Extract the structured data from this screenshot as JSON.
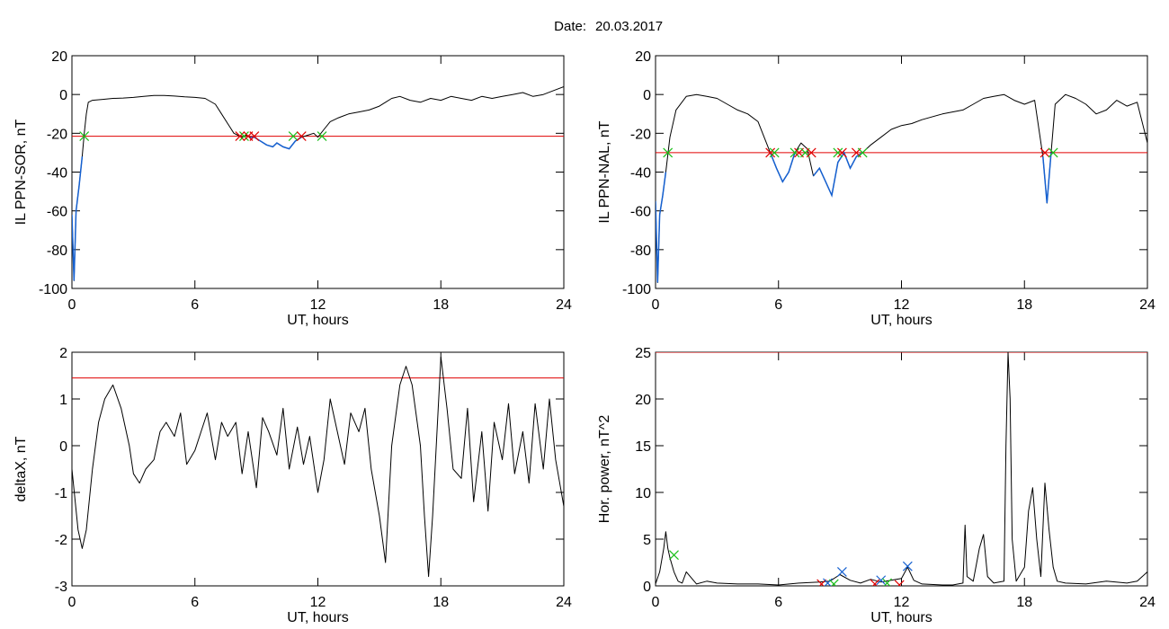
{
  "header": {
    "date_label": "Date:",
    "date_value": "20.03.2017"
  },
  "colors": {
    "axes": "#000000",
    "trace": "#000000",
    "threshold": "#e00000",
    "highlight": "#1560d0",
    "marker_red": "#e00000",
    "marker_green": "#19c019",
    "marker_blue": "#1560d0"
  },
  "chart_data": [
    {
      "type": "line",
      "xlabel": "UT, hours",
      "ylabel": "IL PPN-SOR, nT",
      "xlim": [
        0,
        24
      ],
      "ylim": [
        -100,
        20
      ],
      "xticks": [
        0,
        6,
        12,
        18,
        24
      ],
      "yticks": [
        -100,
        -80,
        -60,
        -40,
        -20,
        0,
        20
      ],
      "threshold": -21.5,
      "series": [
        {
          "x": [
            0,
            0.1,
            0.2,
            0.35,
            0.5,
            0.6,
            0.7,
            0.8,
            1,
            1.5,
            2,
            2.5,
            3,
            3.5,
            4,
            4.5,
            5,
            5.5,
            6,
            6.5,
            7,
            7.3,
            7.6,
            7.9,
            8.1,
            8.3,
            8.5,
            8.7,
            8.9,
            9.2,
            9.5,
            9.8,
            10,
            10.3,
            10.6,
            10.9,
            11.2,
            11.5,
            11.8,
            12,
            12.3,
            12.6,
            13,
            13.5,
            14,
            14.5,
            15,
            15.3,
            15.6,
            16,
            16.5,
            17,
            17.5,
            18,
            18.5,
            19,
            19.5,
            20,
            20.5,
            21,
            21.5,
            22,
            22.5,
            23,
            23.5,
            24
          ],
          "y": [
            -62,
            -96,
            -60,
            -47,
            -32,
            -20,
            -10,
            -4,
            -3,
            -2.5,
            -2,
            -1.8,
            -1.5,
            -1,
            -0.5,
            -0.5,
            -0.8,
            -1.2,
            -1.5,
            -2,
            -5,
            -10,
            -15,
            -20,
            -21,
            -22,
            -21,
            -22,
            -22,
            -24,
            -26,
            -27,
            -25,
            -27,
            -28,
            -24,
            -22,
            -21,
            -20,
            -22,
            -18,
            -14,
            -12,
            -10,
            -9,
            -8,
            -6,
            -4,
            -2,
            -1,
            -3,
            -4,
            -2,
            -3,
            -1,
            -2,
            -3,
            -1,
            -2,
            -1,
            0,
            1,
            -1,
            0,
            2,
            4
          ]
        }
      ],
      "markers": [
        {
          "x": 0.6,
          "y": -21.5,
          "symbol": "x",
          "color": "green"
        },
        {
          "x": 8.2,
          "y": -21.5,
          "symbol": "x",
          "color": "red"
        },
        {
          "x": 8.4,
          "y": -21.5,
          "symbol": "x",
          "color": "green"
        },
        {
          "x": 8.6,
          "y": -21.5,
          "symbol": "x",
          "color": "red"
        },
        {
          "x": 8.9,
          "y": -21.5,
          "symbol": "x",
          "color": "red"
        },
        {
          "x": 10.8,
          "y": -21.5,
          "symbol": "x",
          "color": "green"
        },
        {
          "x": 11.2,
          "y": -21.5,
          "symbol": "x",
          "color": "red"
        },
        {
          "x": 12.2,
          "y": -21.5,
          "symbol": "x",
          "color": "green"
        }
      ],
      "highlight_threshold_below": true
    },
    {
      "type": "line",
      "xlabel": "UT, hours",
      "ylabel": "IL PPN-NAL, nT",
      "xlim": [
        0,
        24
      ],
      "ylim": [
        -100,
        20
      ],
      "xticks": [
        0,
        6,
        12,
        18,
        24
      ],
      "yticks": [
        -100,
        -80,
        -60,
        -40,
        -20,
        0,
        20
      ],
      "threshold": -30,
      "series": [
        {
          "x": [
            0,
            0.1,
            0.2,
            0.35,
            0.5,
            0.7,
            1,
            1.5,
            2,
            2.5,
            3,
            3.5,
            4,
            4.5,
            5,
            5.3,
            5.6,
            5.9,
            6.2,
            6.5,
            6.8,
            7.1,
            7.4,
            7.7,
            8,
            8.3,
            8.6,
            8.9,
            9.2,
            9.5,
            9.8,
            10.1,
            10.5,
            11,
            11.5,
            12,
            12.5,
            13,
            14,
            15,
            15.5,
            16,
            16.5,
            17,
            17.5,
            18,
            18.5,
            18.9,
            19.1,
            19.3,
            19.5,
            20,
            20.5,
            21,
            21.5,
            22,
            22.5,
            23,
            23.5,
            24
          ],
          "y": [
            -55,
            -97,
            -62,
            -52,
            -40,
            -22,
            -8,
            -1,
            0,
            -1,
            -2,
            -5,
            -8,
            -10,
            -14,
            -22,
            -30,
            -38,
            -45,
            -40,
            -30,
            -25,
            -28,
            -42,
            -38,
            -45,
            -52,
            -35,
            -30,
            -38,
            -32,
            -30,
            -26,
            -22,
            -18,
            -16,
            -15,
            -13,
            -10,
            -8,
            -5,
            -2,
            -1,
            0,
            -3,
            -5,
            -3,
            -32,
            -56,
            -30,
            -5,
            0,
            -2,
            -5,
            -10,
            -8,
            -3,
            -6,
            -4,
            -25
          ]
        }
      ],
      "markers": [
        {
          "x": 0.6,
          "y": -30,
          "symbol": "x",
          "color": "green"
        },
        {
          "x": 5.6,
          "y": -30,
          "symbol": "x",
          "color": "red"
        },
        {
          "x": 5.8,
          "y": -30,
          "symbol": "x",
          "color": "green"
        },
        {
          "x": 6.8,
          "y": -30,
          "symbol": "x",
          "color": "green"
        },
        {
          "x": 7.0,
          "y": -30,
          "symbol": "x",
          "color": "red"
        },
        {
          "x": 7.3,
          "y": -30,
          "symbol": "x",
          "color": "green"
        },
        {
          "x": 7.6,
          "y": -30,
          "symbol": "x",
          "color": "red"
        },
        {
          "x": 8.9,
          "y": -30,
          "symbol": "x",
          "color": "green"
        },
        {
          "x": 9.1,
          "y": -30,
          "symbol": "x",
          "color": "red"
        },
        {
          "x": 9.8,
          "y": -30,
          "symbol": "x",
          "color": "red"
        },
        {
          "x": 10.1,
          "y": -30,
          "symbol": "x",
          "color": "green"
        },
        {
          "x": 19.0,
          "y": -30,
          "symbol": "x",
          "color": "red"
        },
        {
          "x": 19.4,
          "y": -30,
          "symbol": "x",
          "color": "green"
        }
      ],
      "highlight_threshold_below": true
    },
    {
      "type": "line",
      "xlabel": "UT, hours",
      "ylabel": "deltaX, nT",
      "xlim": [
        0,
        24
      ],
      "ylim": [
        -3,
        2
      ],
      "xticks": [
        0,
        6,
        12,
        18,
        24
      ],
      "yticks": [
        -3,
        -2,
        -1,
        0,
        1,
        2
      ],
      "threshold": 1.45,
      "series": [
        {
          "x": [
            0,
            0.3,
            0.5,
            0.7,
            1,
            1.3,
            1.6,
            2,
            2.4,
            2.8,
            3,
            3.3,
            3.6,
            4,
            4.3,
            4.6,
            5,
            5.3,
            5.6,
            6,
            6.3,
            6.6,
            7,
            7.3,
            7.6,
            8,
            8.3,
            8.6,
            9,
            9.3,
            9.6,
            10,
            10.3,
            10.6,
            11,
            11.3,
            11.6,
            12,
            12.3,
            12.6,
            13,
            13.3,
            13.6,
            14,
            14.3,
            14.6,
            15,
            15.3,
            15.6,
            16,
            16.3,
            16.6,
            17,
            17.2,
            17.4,
            17.6,
            18,
            18.3,
            18.6,
            19,
            19.3,
            19.6,
            20,
            20.3,
            20.6,
            21,
            21.3,
            21.6,
            22,
            22.3,
            22.6,
            23,
            23.3,
            23.6,
            24
          ],
          "y": [
            -0.5,
            -1.8,
            -2.2,
            -1.8,
            -0.5,
            0.5,
            1,
            1.3,
            0.8,
            0,
            -0.6,
            -0.8,
            -0.5,
            -0.3,
            0.3,
            0.5,
            0.2,
            0.7,
            -0.4,
            -0.1,
            0.3,
            0.7,
            -0.3,
            0.5,
            0.2,
            0.5,
            -0.6,
            0.3,
            -0.9,
            0.6,
            0.3,
            -0.2,
            0.8,
            -0.5,
            0.4,
            -0.4,
            0.2,
            -1,
            -0.3,
            1,
            0.2,
            -0.4,
            0.7,
            0.3,
            0.8,
            -0.5,
            -1.5,
            -2.5,
            0,
            1.3,
            1.7,
            1.3,
            0,
            -1.5,
            -2.8,
            -1.5,
            1.9,
            0.8,
            -0.5,
            -0.7,
            0.8,
            -1.2,
            0.3,
            -1.4,
            0.5,
            -0.3,
            0.9,
            -0.6,
            0.3,
            -0.8,
            0.9,
            -0.5,
            1,
            -0.3,
            -1.3
          ]
        }
      ]
    },
    {
      "type": "line",
      "xlabel": "UT, hours",
      "ylabel": "Hor. power, nT^2",
      "xlim": [
        0,
        24
      ],
      "ylim": [
        0,
        25
      ],
      "xticks": [
        0,
        6,
        12,
        18,
        24
      ],
      "yticks": [
        0,
        5,
        10,
        15,
        20,
        25
      ],
      "threshold": 25,
      "series": [
        {
          "x": [
            0,
            0.2,
            0.4,
            0.5,
            0.6,
            0.7,
            0.9,
            1.1,
            1.3,
            1.5,
            2,
            2.5,
            3,
            4,
            5,
            6,
            7,
            8,
            8.5,
            9,
            9.5,
            10,
            10.5,
            11,
            11.5,
            12,
            12.3,
            12.6,
            13,
            14,
            14.5,
            15,
            15.1,
            15.2,
            15.5,
            15.8,
            16,
            16.2,
            16.5,
            17,
            17.1,
            17.2,
            17.3,
            17.4,
            17.6,
            18,
            18.2,
            18.4,
            18.6,
            18.8,
            19,
            19.2,
            19.4,
            19.6,
            20,
            21,
            22,
            23,
            23.5,
            24
          ],
          "y": [
            0.2,
            1.5,
            4,
            5.8,
            4,
            3,
            1.5,
            0.5,
            0.3,
            1.5,
            0.2,
            0.5,
            0.3,
            0.2,
            0.2,
            0.1,
            0.3,
            0.4,
            0.5,
            1.2,
            0.6,
            0.3,
            0.7,
            0.4,
            0.6,
            0.8,
            2,
            0.6,
            0.2,
            0.1,
            0.1,
            0.3,
            6.5,
            1,
            0.5,
            4,
            5.5,
            1,
            0.3,
            0.5,
            15,
            25,
            20,
            5,
            0.5,
            2,
            8,
            10.5,
            5,
            1,
            11,
            6,
            2,
            0.5,
            0.3,
            0.2,
            0.5,
            0.3,
            0.5,
            1.5
          ]
        }
      ],
      "markers": [
        {
          "x": 0.9,
          "y": 3.3,
          "symbol": "x",
          "color": "green"
        },
        {
          "x": 8.1,
          "y": 0.2,
          "symbol": "x",
          "color": "red"
        },
        {
          "x": 8.4,
          "y": 0.3,
          "symbol": "x",
          "color": "blue"
        },
        {
          "x": 8.7,
          "y": 0.2,
          "symbol": "x",
          "color": "green"
        },
        {
          "x": 9.1,
          "y": 1.5,
          "symbol": "x",
          "color": "blue"
        },
        {
          "x": 10.7,
          "y": 0.2,
          "symbol": "x",
          "color": "red"
        },
        {
          "x": 11.0,
          "y": 0.6,
          "symbol": "x",
          "color": "blue"
        },
        {
          "x": 11.3,
          "y": 0.3,
          "symbol": "x",
          "color": "green"
        },
        {
          "x": 11.9,
          "y": 0.1,
          "symbol": "x",
          "color": "red"
        },
        {
          "x": 12.3,
          "y": 2.1,
          "symbol": "x",
          "color": "blue"
        }
      ]
    }
  ]
}
